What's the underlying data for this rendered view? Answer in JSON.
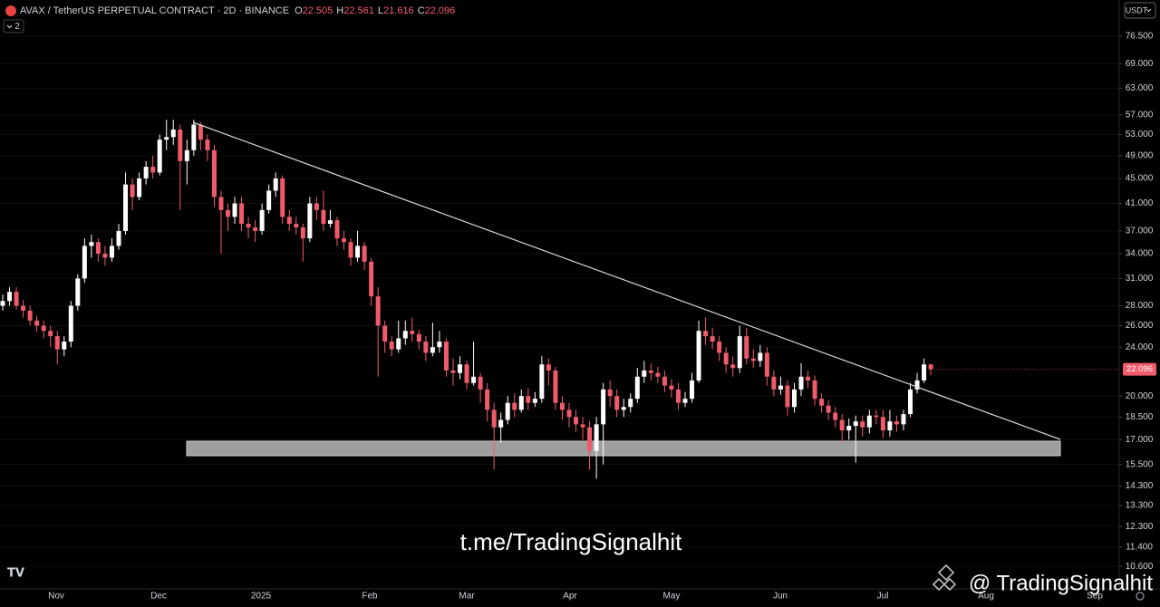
{
  "chart_data": {
    "type": "candlestick",
    "title": "AVAX / TetherUS PERPETUAL CONTRACT · 2D · BINANCE",
    "ohlc_labels": [
      "O",
      "H",
      "L",
      "C"
    ],
    "indicator_count": "2",
    "currency": "USDT",
    "watermark": "t.me/TradingSignalhit",
    "handle": "@ TradingSignalhit",
    "x_labels": [
      "Nov",
      "Dec",
      "2025",
      "Feb",
      "Mar",
      "Apr",
      "May",
      "Jun",
      "Jul",
      "Aug",
      "Sep"
    ],
    "log_scale": true,
    "grid": true,
    "up_color": "#ffffff",
    "down_color": "#f05b6c",
    "ylim": [
      9.75,
      87.5
    ],
    "yticks": [
      {
        "value": 10.6,
        "label": "10.600"
      },
      {
        "value": 11.4,
        "label": "11.400"
      },
      {
        "value": 12.3,
        "label": "12.300"
      },
      {
        "value": 13.3,
        "label": "13.300"
      },
      {
        "value": 14.3,
        "label": "14.300"
      },
      {
        "value": 15.5,
        "label": "15.500"
      },
      {
        "value": 17,
        "label": "17.000"
      },
      {
        "value": 18.5,
        "label": "18.500"
      },
      {
        "value": 20,
        "label": "20.000"
      },
      {
        "value": 24,
        "label": "24.000"
      },
      {
        "value": 26,
        "label": "26.000"
      },
      {
        "value": 28,
        "label": "28.000"
      },
      {
        "value": 31,
        "label": "31.000"
      },
      {
        "value": 34,
        "label": "34.000"
      },
      {
        "value": 37,
        "label": "37.000"
      },
      {
        "value": 41,
        "label": "41.000"
      },
      {
        "value": 45,
        "label": "45.000"
      },
      {
        "value": 49,
        "label": "49.000"
      },
      {
        "value": 53,
        "label": "53.000"
      },
      {
        "value": 57,
        "label": "57.000"
      },
      {
        "value": 63,
        "label": "63.000"
      },
      {
        "value": 69,
        "label": "69.000"
      },
      {
        "value": 76.5,
        "label": "76.500"
      }
    ],
    "open": [
      28,
      28.5,
      29.5,
      28,
      27.5,
      26.5,
      26,
      25.5,
      25,
      23.8,
      24.5,
      28,
      31,
      35,
      35.5,
      34,
      33.5,
      35,
      37,
      44,
      42,
      45,
      47,
      46,
      52,
      52.5,
      54,
      48,
      50,
      55,
      52,
      50,
      42,
      40,
      39,
      41,
      38,
      37.5,
      37,
      40,
      43,
      45,
      39,
      38,
      37.5,
      36,
      41,
      40,
      38,
      38.5,
      36,
      35.5,
      33.5,
      35,
      33,
      29,
      26,
      24.5,
      23.8,
      24.8,
      25.5,
      25.2,
      24.5,
      23.5,
      24,
      24.5,
      22,
      21.8,
      22.5,
      21,
      21.5,
      20.5,
      19,
      17.8,
      18.3,
      19.5,
      19,
      20,
      19.5,
      19.8,
      22.5,
      22,
      19.5,
      19,
      18.5,
      18,
      17.8,
      16.3,
      18,
      20.5,
      20,
      19,
      19.2,
      19.8,
      21.5,
      22,
      21.8,
      21.5,
      20.8,
      20.5,
      19.5,
      19.8,
      21.2,
      25.5,
      25,
      24.5,
      23.5,
      22.5,
      22.2,
      25,
      23,
      22.8,
      23.5,
      21.5,
      20.5,
      20.8,
      19.2,
      20.5,
      21.5,
      21.2,
      19.8,
      19.3,
      18.8,
      18.3,
      17.6,
      17.9,
      18.2,
      17.8,
      18.6,
      18.5,
      17.6,
      18.2,
      18,
      18.7,
      20.5,
      21.2,
      22.505
    ],
    "high": [
      29.2,
      30,
      30,
      28.6,
      28,
      27,
      26.5,
      26,
      25.5,
      25,
      28.5,
      31.5,
      36,
      36.5,
      36,
      35,
      36,
      38,
      46,
      45,
      46,
      48,
      49,
      53,
      56,
      56,
      55,
      52,
      56,
      55.5,
      53,
      51,
      43,
      41,
      42,
      42,
      39,
      38.5,
      41,
      44,
      46,
      45.5,
      40,
      39,
      38,
      42,
      42,
      43,
      40,
      39,
      37,
      36,
      37,
      35.5,
      33.5,
      30,
      26.5,
      25,
      26.5,
      26.5,
      26.8,
      25.6,
      25,
      26.3,
      25.5,
      24.8,
      23,
      23.2,
      22.8,
      24.5,
      21.8,
      21,
      19.5,
      18.8,
      20,
      20.2,
      20.5,
      20.6,
      20.3,
      23.2,
      23,
      22.3,
      20,
      19.5,
      19,
      18.5,
      18.2,
      18.5,
      21,
      21.2,
      20.5,
      19.8,
      20.2,
      22.2,
      22.8,
      22.6,
      22.3,
      22,
      21.3,
      21,
      20.3,
      21.8,
      26.5,
      26.8,
      25.8,
      25,
      24,
      23.2,
      26,
      25.8,
      23.8,
      24.2,
      24,
      22,
      21.5,
      21.2,
      21,
      22.6,
      22,
      21.6,
      20.2,
      19.7,
      19.2,
      18.7,
      18.4,
      18.6,
      18.6,
      19,
      19,
      19,
      19,
      18.6,
      19,
      21,
      21.8,
      23,
      22.561
    ],
    "low": [
      27.5,
      28,
      27.6,
      26.8,
      26,
      25.4,
      24.8,
      24,
      22.5,
      23.2,
      24,
      27.5,
      30.5,
      33.5,
      33,
      32.5,
      33,
      34.5,
      36.5,
      40,
      41.5,
      44,
      45,
      45.5,
      50,
      51,
      40,
      44,
      49,
      50,
      48,
      40.5,
      34,
      37,
      38,
      37,
      36,
      35.5,
      36.5,
      39.5,
      42,
      38,
      37,
      36.5,
      33,
      35.5,
      38.5,
      37,
      37.5,
      35,
      34.5,
      32.5,
      33,
      32,
      28,
      21.5,
      23.5,
      23.2,
      23.5,
      24.2,
      24.5,
      23.8,
      22.8,
      23.2,
      23.5,
      21.5,
      20.8,
      21.3,
      20.5,
      20.8,
      19.5,
      18.2,
      15.2,
      16.8,
      18,
      18.5,
      18.8,
      19,
      19.2,
      19.5,
      20.8,
      19,
      18.3,
      17.8,
      17.5,
      17,
      15.2,
      14.7,
      15.5,
      19.2,
      18.5,
      18.5,
      18.8,
      19.5,
      21,
      21.2,
      21,
      20.3,
      19.9,
      19,
      19.2,
      19.5,
      21,
      24.2,
      23.8,
      22.8,
      21.8,
      21.5,
      21.8,
      22.5,
      22.2,
      22.3,
      20.8,
      20,
      20.1,
      18.6,
      18.8,
      20,
      20.6,
      19.3,
      18.8,
      18.3,
      17.8,
      16.8,
      17,
      15.6,
      17.2,
      17.4,
      18,
      17.1,
      17.2,
      17.5,
      17.6,
      18.5,
      20.2,
      21,
      21.616
    ],
    "close": [
      28.5,
      29.5,
      28,
      27.5,
      26.5,
      26,
      25.5,
      25,
      23.8,
      24.5,
      28,
      31,
      35,
      35.5,
      34,
      33.5,
      35,
      37,
      44,
      42,
      45,
      47,
      46,
      52,
      52.5,
      54,
      48,
      50,
      55,
      52,
      50,
      42,
      40,
      39,
      41,
      38,
      37.5,
      37,
      40,
      43,
      45,
      39,
      38,
      37.5,
      36,
      41,
      40,
      38,
      38.5,
      36,
      35.5,
      33.5,
      35,
      33,
      29,
      26,
      24.5,
      23.8,
      24.8,
      25.5,
      25.2,
      24.5,
      23.5,
      24,
      24.5,
      22,
      21.8,
      22.5,
      21,
      21.5,
      20.5,
      19,
      17.8,
      18.3,
      19.5,
      19,
      20,
      19.5,
      19.8,
      22.5,
      22,
      19.5,
      19,
      18.5,
      18,
      17.8,
      16.3,
      18,
      20.5,
      20,
      19,
      19.2,
      19.8,
      21.5,
      22,
      21.8,
      21.5,
      20.8,
      20.5,
      19.5,
      19.8,
      21.2,
      25.5,
      25,
      24.5,
      23.5,
      22.5,
      22.2,
      25,
      23,
      22.8,
      23.5,
      21.5,
      20.5,
      20.8,
      19.2,
      20.5,
      21.5,
      21.2,
      19.8,
      19.3,
      18.8,
      18.3,
      17.6,
      17.9,
      18.2,
      17.8,
      18.6,
      18.5,
      17.6,
      18.2,
      18,
      18.7,
      20.5,
      21.2,
      22.505,
      22.096
    ]
  }
}
